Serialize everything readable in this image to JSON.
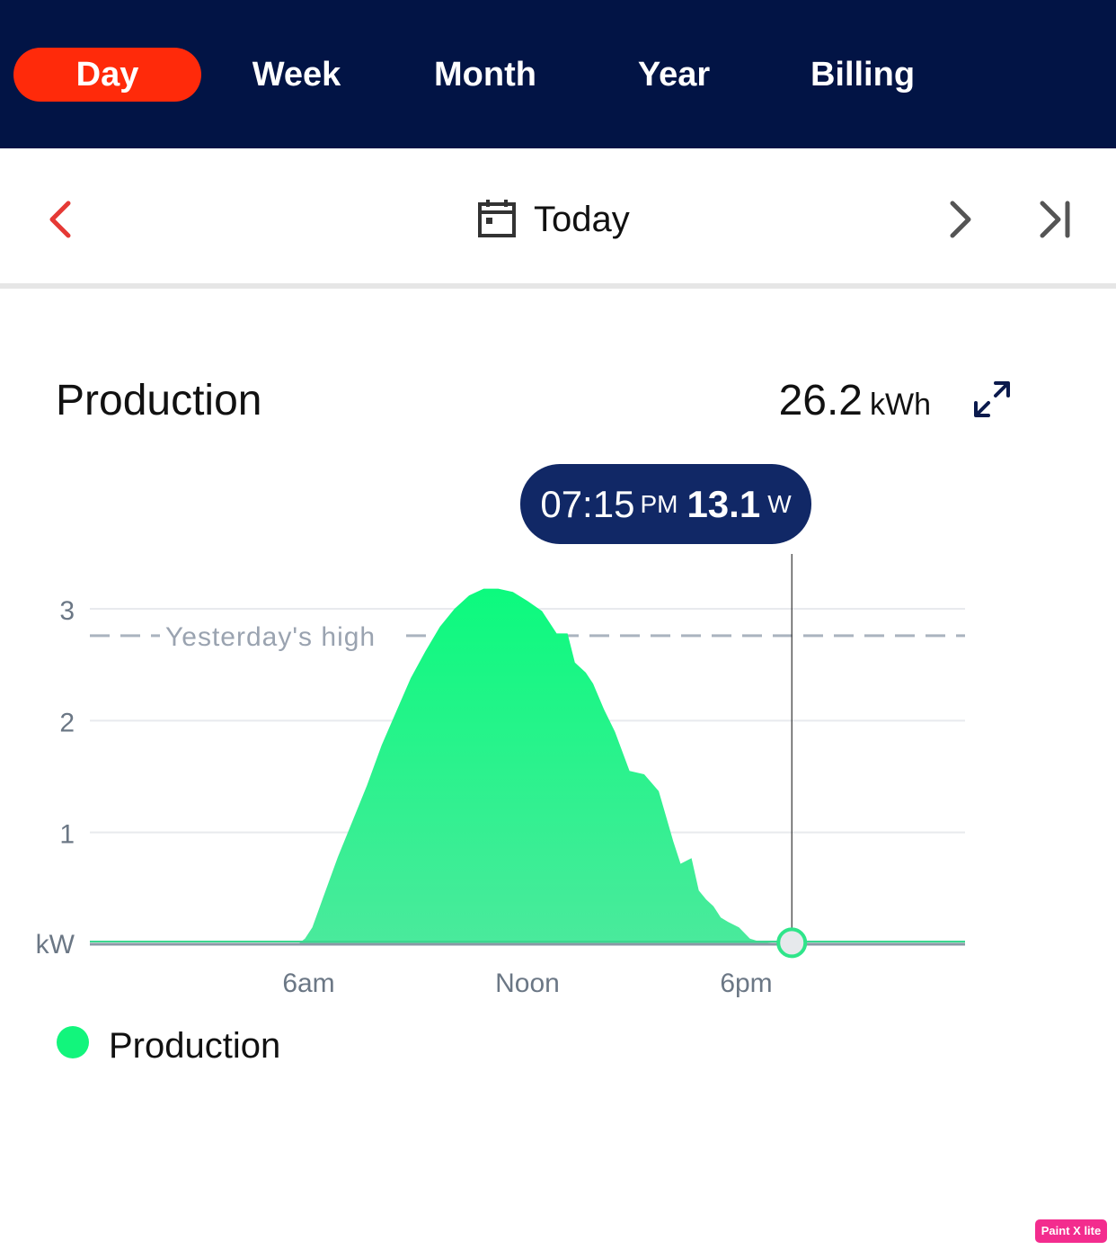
{
  "tabs": [
    {
      "label": "Day",
      "active": true
    },
    {
      "label": "Week",
      "active": false
    },
    {
      "label": "Month",
      "active": false
    },
    {
      "label": "Year",
      "active": false
    },
    {
      "label": "Billing",
      "active": false
    }
  ],
  "date_nav": {
    "label": "Today",
    "prev_icon": "chevron-left-icon",
    "next_icon": "chevron-right-icon",
    "last_icon": "skip-to-end-icon",
    "calendar_icon": "calendar-icon"
  },
  "production": {
    "title": "Production",
    "total_value": "26.2",
    "total_unit": "kWh",
    "expand_icon": "expand-icon"
  },
  "tooltip": {
    "time": "07:15",
    "ampm": "PM",
    "value": "13.1",
    "unit": "W"
  },
  "legend": {
    "label": "Production",
    "color": "#12f57c"
  },
  "watermark": {
    "text": "Paint X lite"
  },
  "colors": {
    "header_bg": "#021445",
    "active_tab": "#ff2a0a",
    "area_top": "#0cfa7e",
    "area_bottom": "#4aea9c",
    "tooltip_bg": "#112866",
    "prev_arrow": "#e53935"
  },
  "chart_data": {
    "type": "area",
    "y_ticks": [
      "3",
      "2",
      "1"
    ],
    "y_unit_label": "kW",
    "ylim": [
      0,
      3
    ],
    "x_ticks": [
      "6am",
      "Noon",
      "6pm"
    ],
    "x_tick_hours": [
      6,
      12,
      18
    ],
    "xlim_hours": [
      0,
      24
    ],
    "reference_line": {
      "label": "Yesterday's high",
      "value": 2.76
    },
    "cursor": {
      "time_hours": 19.25,
      "value_kw": 0.0131
    },
    "series": [
      {
        "name": "Production",
        "x_hours": [
          0,
          5.7,
          5.9,
          6.1,
          6.4,
          6.8,
          7.2,
          7.6,
          8.0,
          8.4,
          8.8,
          9.2,
          9.6,
          10.0,
          10.4,
          10.8,
          11.2,
          11.6,
          12.0,
          12.4,
          12.8,
          13.1,
          13.3,
          13.6,
          13.8,
          14.1,
          14.4,
          14.8,
          15.2,
          15.6,
          16.0,
          16.2,
          16.5,
          16.7,
          16.9,
          17.1,
          17.3,
          17.5,
          17.8,
          18.1,
          18.4,
          18.7,
          19.0,
          19.25,
          24
        ],
        "values_kw": [
          0,
          0,
          0.05,
          0.15,
          0.42,
          0.78,
          1.1,
          1.42,
          1.78,
          2.08,
          2.38,
          2.62,
          2.84,
          3.0,
          3.12,
          3.18,
          3.18,
          3.15,
          3.07,
          2.98,
          2.78,
          2.78,
          2.52,
          2.43,
          2.33,
          2.1,
          1.9,
          1.55,
          1.52,
          1.37,
          0.92,
          0.72,
          0.77,
          0.48,
          0.4,
          0.34,
          0.24,
          0.2,
          0.15,
          0.05,
          0.02,
          0.0131,
          0.0131,
          0.0131,
          0.0131
        ]
      }
    ]
  }
}
